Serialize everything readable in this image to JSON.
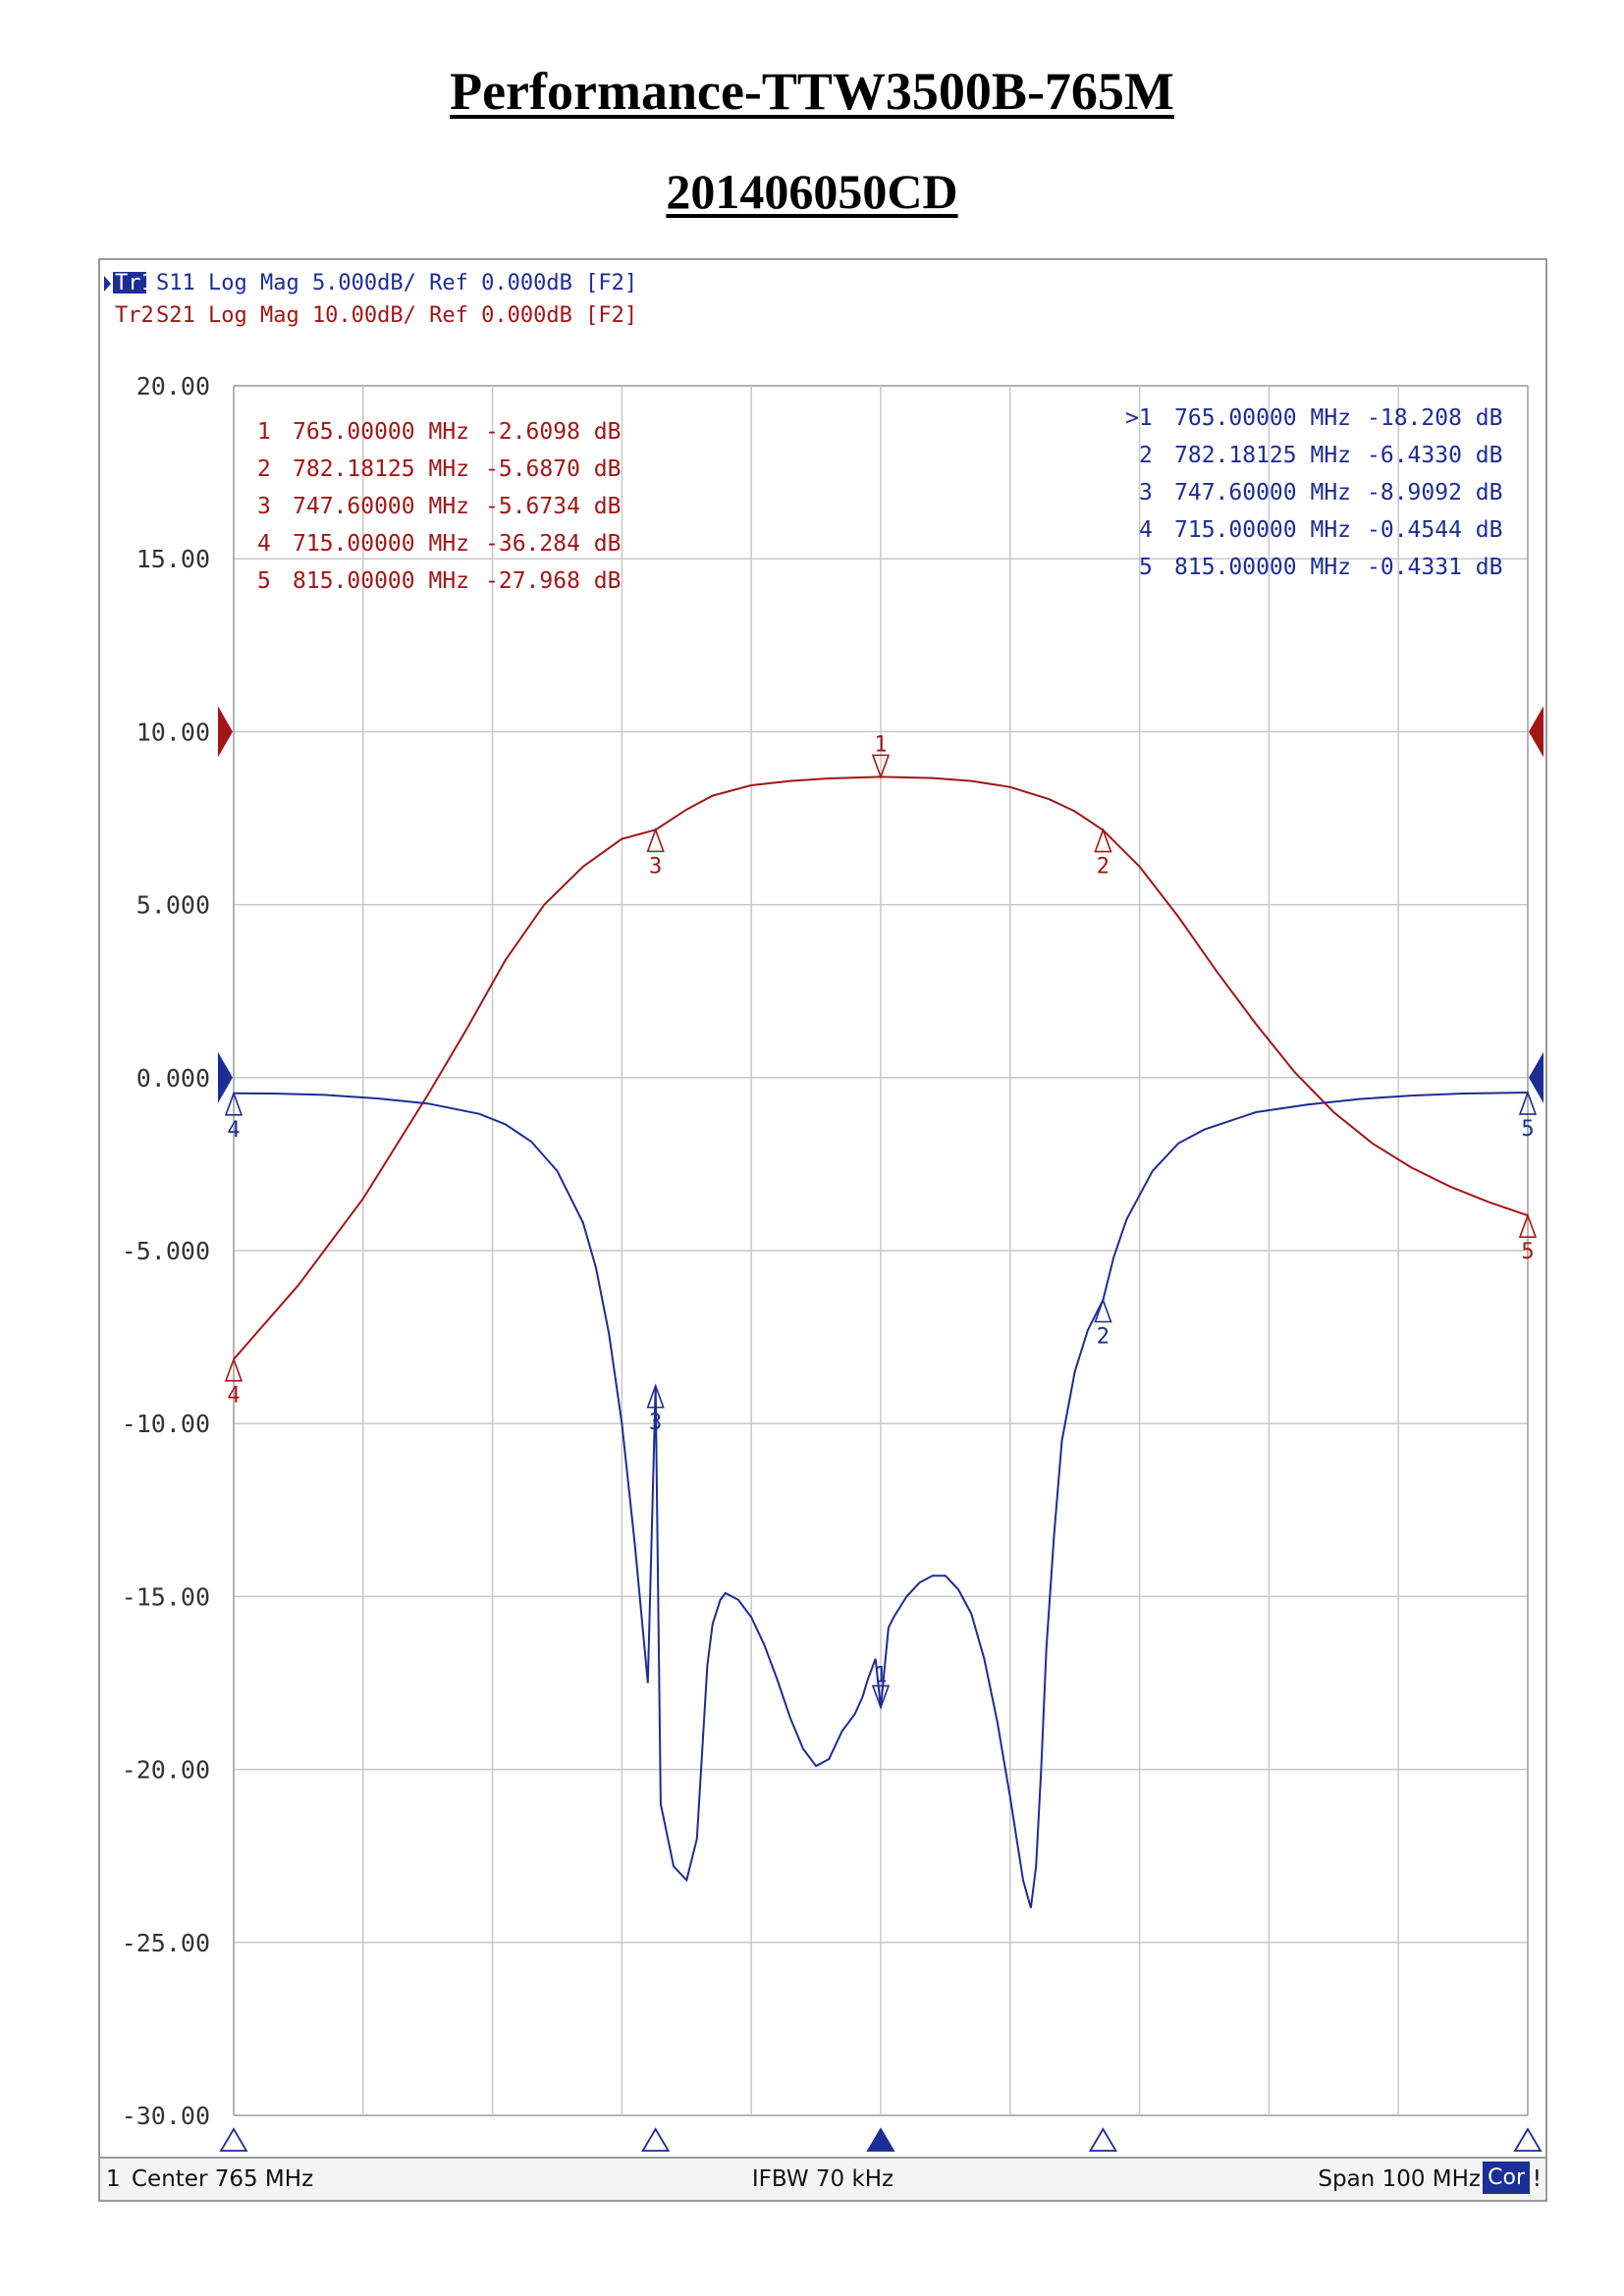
{
  "title": "Performance-TTW3500B-765M",
  "subtitle": "201406050CD",
  "colors": {
    "s11": "#1c2d96",
    "s21": "#a31616",
    "grid": "#c8c8c8",
    "axis_text": "#333333"
  },
  "traces": [
    {
      "id": "Tr1",
      "label": "S11 Log Mag 5.000dB/ Ref 0.000dB [F2]",
      "active": true
    },
    {
      "id": "Tr2",
      "label": "S21 Log Mag 10.00dB/ Ref 0.000dB [F2]",
      "active": false
    }
  ],
  "markers_s21": [
    {
      "num": "1",
      "freq": "765.00000 MHz",
      "value": "-2.6098 dB"
    },
    {
      "num": "2",
      "freq": "782.18125 MHz",
      "value": "-5.6870 dB"
    },
    {
      "num": "3",
      "freq": "747.60000 MHz",
      "value": "-5.6734 dB"
    },
    {
      "num": "4",
      "freq": "715.00000 MHz",
      "value": "-36.284 dB"
    },
    {
      "num": "5",
      "freq": "815.00000 MHz",
      "value": "-27.968 dB"
    }
  ],
  "markers_s11": [
    {
      "num": ">1",
      "freq": "765.00000 MHz",
      "value": "-18.208 dB"
    },
    {
      "num": "2",
      "freq": "782.18125 MHz",
      "value": "-6.4330 dB"
    },
    {
      "num": "3",
      "freq": "747.60000 MHz",
      "value": "-8.9092 dB"
    },
    {
      "num": "4",
      "freq": "715.00000 MHz",
      "value": "-0.4544 dB"
    },
    {
      "num": "5",
      "freq": "815.00000 MHz",
      "value": "-0.4331 dB"
    }
  ],
  "status": {
    "channel": "1",
    "center": "Center 765 MHz",
    "ifbw": "IFBW 70 kHz",
    "span": "Span 100 MHz",
    "cor": "Cor",
    "flag": "!"
  },
  "chart_data": {
    "type": "line",
    "xlabel": "",
    "ylabel": "",
    "xlim": [
      715,
      815
    ],
    "ylim": [
      -30,
      20
    ],
    "y_ticks": [
      "20.00",
      "15.00",
      "10.00",
      "5.000",
      "0.000",
      "-5.000",
      "-10.00",
      "-15.00",
      "-20.00",
      "-25.00",
      "-30.00"
    ],
    "x_divisions": 10,
    "grid": true,
    "s11_ref": 0,
    "s21_ref_display": 10,
    "series": [
      {
        "name": "S11",
        "display_scale": "5 dB/div",
        "x": [
          715,
          718,
          722,
          726,
          730,
          734,
          736,
          738,
          740,
          742,
          743,
          744,
          745,
          746,
          747,
          747.6,
          748,
          749,
          750,
          750.8,
          751.2,
          751.6,
          752,
          752.6,
          753,
          754,
          755,
          756,
          757,
          758,
          759,
          760,
          761,
          762,
          763,
          763.6,
          764,
          764.6,
          765,
          765.6,
          766,
          767,
          768,
          769,
          770,
          771,
          772,
          773,
          774,
          775,
          776,
          776.6,
          777,
          777.4,
          777.8,
          778.4,
          779,
          780,
          781,
          782.18,
          783,
          784,
          786,
          788,
          790,
          794,
          798,
          802,
          806,
          810,
          815
        ],
        "values": [
          -0.45,
          -0.46,
          -0.5,
          -0.6,
          -0.75,
          -1.05,
          -1.35,
          -1.85,
          -2.7,
          -4.2,
          -5.5,
          -7.4,
          -10.0,
          -13.5,
          -17.5,
          -8.91,
          -21.0,
          -22.8,
          -23.2,
          -22.0,
          -19.5,
          -17.0,
          -15.8,
          -15.1,
          -14.9,
          -15.1,
          -15.6,
          -16.4,
          -17.4,
          -18.5,
          -19.4,
          -19.9,
          -19.7,
          -18.9,
          -18.4,
          -17.9,
          -17.4,
          -16.8,
          -18.21,
          -15.9,
          -15.6,
          -15.0,
          -14.6,
          -14.4,
          -14.4,
          -14.8,
          -15.5,
          -16.8,
          -18.6,
          -20.8,
          -23.2,
          -24.0,
          -22.8,
          -20.0,
          -16.5,
          -13.2,
          -10.5,
          -8.5,
          -7.3,
          -6.43,
          -5.2,
          -4.1,
          -2.7,
          -1.9,
          -1.5,
          -1.0,
          -0.78,
          -0.62,
          -0.52,
          -0.46,
          -0.43
        ]
      },
      {
        "name": "S21",
        "display_scale": "10 dB/div",
        "x": [
          715,
          720,
          725,
          730,
          733,
          736,
          739,
          742,
          745,
          747.6,
          750,
          752,
          755,
          758,
          761,
          765,
          769,
          772,
          775,
          778,
          780,
          782.18,
          785,
          788,
          791,
          794,
          797,
          800,
          803,
          806,
          809,
          812,
          815
        ],
        "values": [
          -36.28,
          -32.0,
          -27.0,
          -21.0,
          -17.2,
          -13.2,
          -10.0,
          -7.8,
          -6.2,
          -5.67,
          -4.5,
          -3.7,
          -3.1,
          -2.85,
          -2.7,
          -2.61,
          -2.68,
          -2.85,
          -3.2,
          -3.9,
          -4.6,
          -5.69,
          -7.8,
          -10.7,
          -13.9,
          -16.9,
          -19.7,
          -22.0,
          -23.8,
          -25.2,
          -26.3,
          -27.2,
          -27.97
        ]
      }
    ]
  }
}
